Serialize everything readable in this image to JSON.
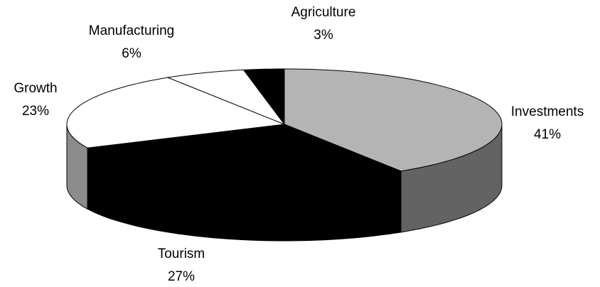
{
  "chart_data": {
    "type": "pie",
    "categories": [
      "Investments",
      "Tourism",
      "Growth",
      "Manufacturing",
      "Agriculture"
    ],
    "values": [
      41,
      27,
      23,
      6,
      3
    ],
    "value_labels": [
      "41%",
      "27%",
      "23%",
      "6%",
      "3%"
    ],
    "colors": [
      "#b4b4b4",
      "#000000",
      "#ffffff",
      "#ffffff",
      "#000000"
    ]
  }
}
